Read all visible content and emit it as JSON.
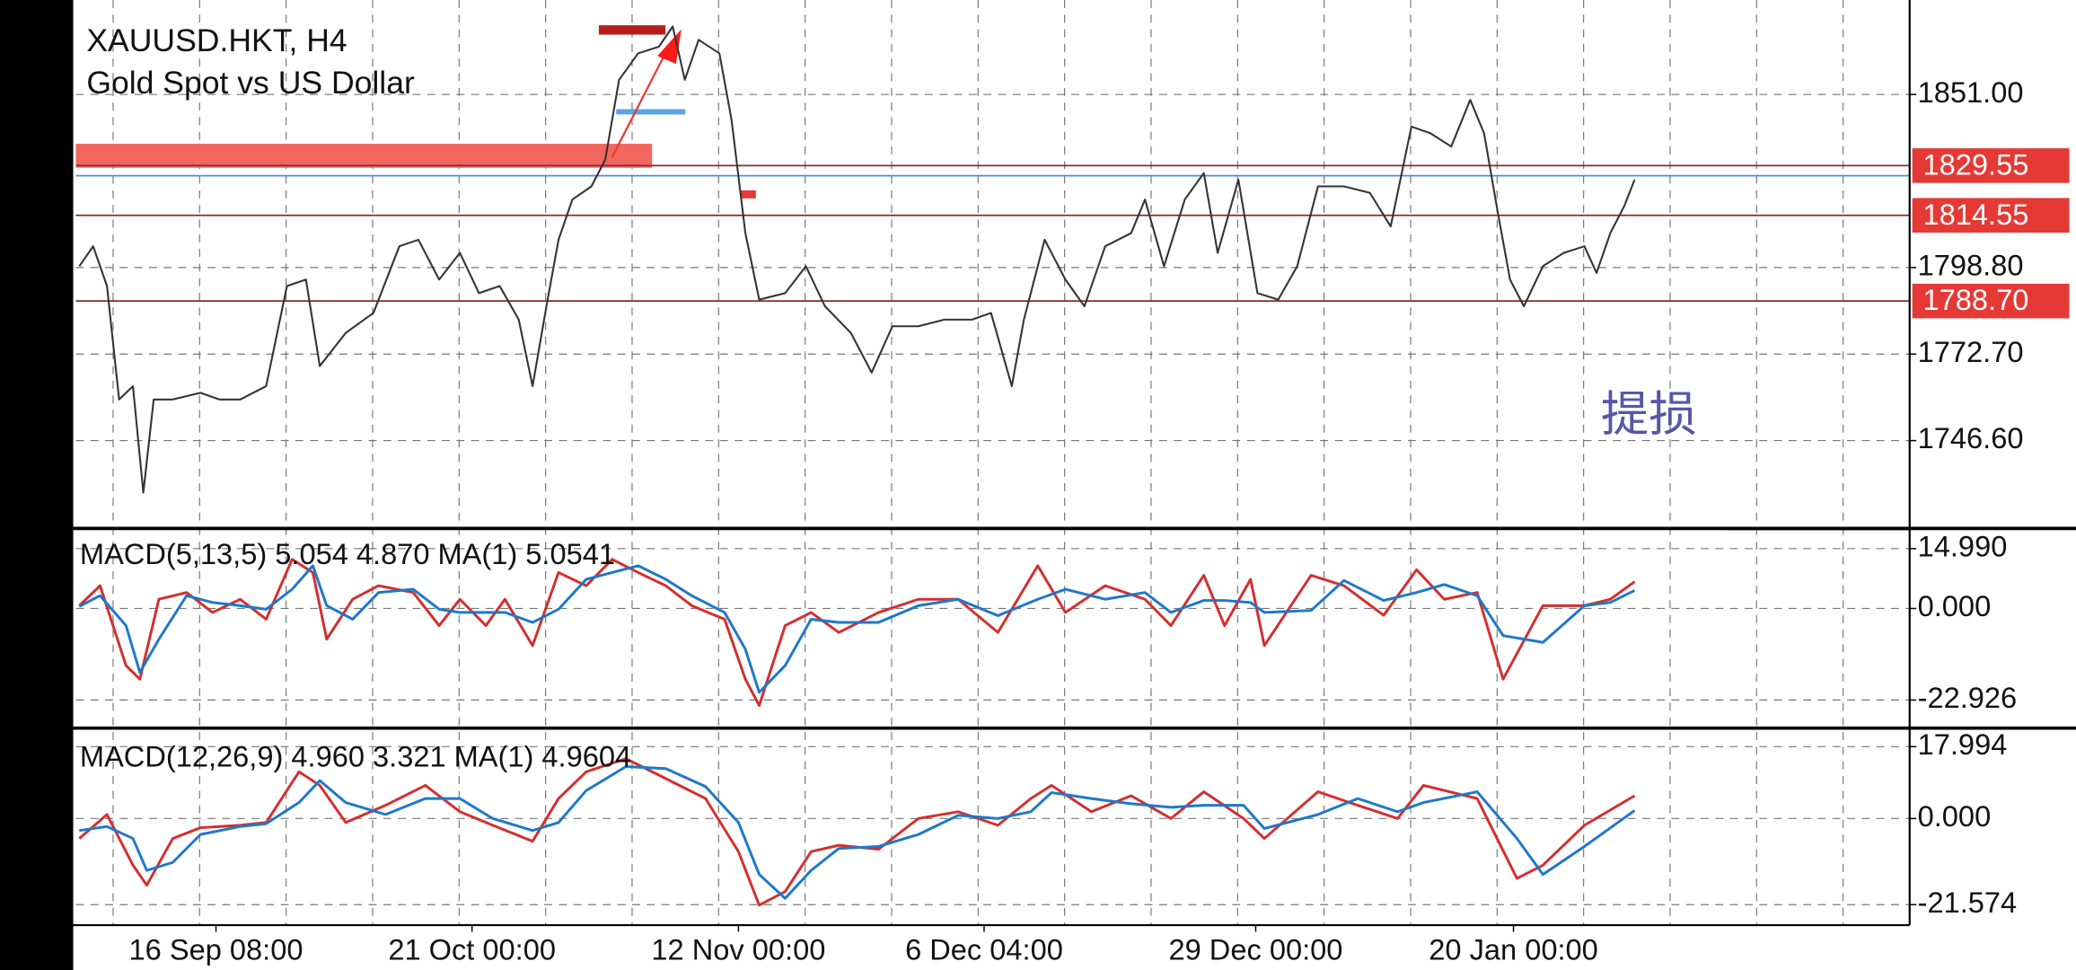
{
  "chart_data": [
    {
      "type": "line",
      "title": "XAUUSD.HKT, H4",
      "subtitle": "Gold Spot vs US Dollar",
      "annotation": "提损",
      "color": "#333333",
      "grid": true,
      "xlim": [
        0,
        1060
      ],
      "ylim": [
        1720.9,
        1879.5
      ],
      "yticks": [
        {
          "value": 1851,
          "label": "1851.00"
        },
        {
          "value": 1798.8,
          "label": "1798.80"
        },
        {
          "value": 1772.7,
          "label": "1772.70"
        },
        {
          "value": 1746.6,
          "label": "1746.60"
        }
      ],
      "levels": [
        {
          "value": 1829.55,
          "label": "1829.55",
          "color": "#e53935"
        },
        {
          "value": 1826.5,
          "color": "#4a90d9"
        },
        {
          "value": 1814.55,
          "label": "1814.55",
          "color": "#e53935"
        },
        {
          "value": 1788.7,
          "label": "1788.70",
          "color": "#e53935"
        }
      ],
      "x": [
        2,
        10,
        18,
        25,
        33,
        39,
        45,
        56,
        72,
        83,
        95,
        110,
        122,
        133,
        141,
        156,
        172,
        187,
        198,
        210,
        222,
        233,
        245,
        256,
        264,
        272,
        279,
        287,
        298,
        306,
        314,
        325,
        337,
        345,
        352,
        360,
        372,
        379,
        387,
        395,
        410,
        422,
        433,
        448,
        460,
        472,
        487,
        502,
        518,
        529,
        541,
        548,
        560,
        572,
        583,
        595,
        610,
        618,
        629,
        641,
        652,
        660,
        672,
        683,
        695,
        706,
        718,
        733,
        748,
        760,
        772,
        783,
        795,
        806,
        814,
        822,
        829,
        837,
        848,
        860,
        872,
        879,
        887,
        895,
        901
      ],
      "values": [
        1799.2,
        1805.2,
        1793.2,
        1759.0,
        1763.0,
        1730.9,
        1759.0,
        1759.0,
        1761.0,
        1759.0,
        1759.0,
        1763.0,
        1793.2,
        1795.2,
        1769.1,
        1779.1,
        1785.1,
        1805.2,
        1807.2,
        1795.2,
        1803.2,
        1791.1,
        1793.2,
        1783.1,
        1763.0,
        1787.1,
        1807.2,
        1819.3,
        1823.3,
        1831.3,
        1855.4,
        1863.4,
        1865.4,
        1871.5,
        1855.4,
        1867.5,
        1863.4,
        1843.4,
        1809.2,
        1789.1,
        1791.1,
        1799.2,
        1787.1,
        1779.1,
        1767.1,
        1781.1,
        1781.1,
        1783.1,
        1783.1,
        1785.1,
        1763.0,
        1783.1,
        1807.2,
        1795.2,
        1787.1,
        1805.2,
        1809.2,
        1819.3,
        1799.2,
        1819.3,
        1827.3,
        1803.2,
        1825.3,
        1791.1,
        1789.1,
        1799.2,
        1823.3,
        1823.3,
        1821.3,
        1811.2,
        1841.3,
        1839.3,
        1835.3,
        1849.4,
        1839.3,
        1815.2,
        1795.2,
        1787.1,
        1799.2,
        1803.2,
        1805.2,
        1797.2,
        1809.2,
        1817.3,
        1825.3
      ]
    },
    {
      "type": "line",
      "title": "MACD(5,13,5) 5.054 4.870 MA(1) 5.0541",
      "xlim": [
        0,
        1060
      ],
      "ylim": [
        -29.3,
        19.7
      ],
      "yticks": [
        {
          "value": 14.99,
          "label": "14.990"
        },
        {
          "value": 0,
          "label": "0.000"
        },
        -22.926
      ],
      "x": [
        2,
        14,
        29,
        37,
        48,
        64,
        79,
        95,
        110,
        125,
        137,
        145,
        160,
        175,
        195,
        210,
        222,
        237,
        248,
        264,
        279,
        295,
        310,
        325,
        341,
        356,
        375,
        387,
        395,
        410,
        425,
        441,
        464,
        487,
        510,
        533,
        556,
        572,
        595,
        618,
        633,
        652,
        664,
        679,
        687,
        714,
        733,
        756,
        775,
        791,
        810,
        825,
        848,
        872,
        887,
        901
      ],
      "series": [
        {
          "color": "#d32f2f",
          "values": [
            0.7,
            5.7,
            -14.3,
            -17.7,
            2.3,
            4,
            -1,
            2.3,
            -2.7,
            12.3,
            9,
            -7.7,
            2.3,
            5.7,
            4,
            -4.3,
            2.3,
            -4.3,
            2.3,
            -9.3,
            9,
            5.7,
            12.3,
            9,
            5.7,
            0.7,
            -2.7,
            -17.7,
            -24.3,
            -4.3,
            -1,
            -6,
            -1,
            2.3,
            2.3,
            -6,
            10.7,
            -1,
            5.7,
            2.3,
            -4.3,
            8.3,
            -4.3,
            7.3,
            -9.3,
            8.3,
            5.7,
            -1.7,
            9.7,
            2.3,
            4,
            -17.7,
            0.7,
            0.7,
            2.3,
            6.7
          ]
        },
        {
          "color": "#1e78c8",
          "values": [
            0.5,
            3.2,
            -4.3,
            -16,
            -7.7,
            3.2,
            1.5,
            0.7,
            -0.2,
            4.8,
            10.7,
            0.7,
            -2.7,
            4,
            4.8,
            -0.2,
            -1,
            -1,
            -1,
            -3.5,
            -0.2,
            7.3,
            9,
            10.7,
            7.3,
            3.2,
            -1,
            -10.2,
            -21,
            -14.3,
            -2.7,
            -3.5,
            -3.5,
            0.7,
            2.3,
            -1.8,
            2.3,
            4.8,
            2.3,
            4,
            -1,
            2,
            2,
            1.5,
            -1,
            -0.5,
            7,
            2,
            4,
            6,
            3.2,
            -6.8,
            -8.5,
            0.7,
            1.5,
            4.5
          ]
        }
      ]
    },
    {
      "type": "line",
      "title": "MACD(12,26,9) 4.960 3.321 MA(1) 4.9604",
      "xlim": [
        0,
        1060
      ],
      "ylim": [
        -26.7,
        22.3
      ],
      "yticks": [
        17.994,
        {
          "value": 0,
          "label": "0.000"
        },
        -21.574
      ],
      "xticks": [
        {
          "value": 81,
          "label": "16 Sep 08:00"
        },
        {
          "value": 229,
          "label": "21 Oct 00:00"
        },
        {
          "value": 383,
          "label": "12 Nov 00:00"
        },
        {
          "value": 525,
          "label": "6 Dec 04:00"
        },
        {
          "value": 682,
          "label": "29 Dec 00:00"
        },
        {
          "value": 831,
          "label": "20 Jan 00:00"
        }
      ],
      "x": [
        2,
        18,
        33,
        41,
        56,
        72,
        95,
        110,
        129,
        141,
        156,
        179,
        202,
        222,
        241,
        264,
        279,
        295,
        318,
        341,
        364,
        383,
        395,
        410,
        425,
        441,
        464,
        487,
        510,
        533,
        552,
        564,
        587,
        610,
        633,
        652,
        675,
        687,
        718,
        741,
        764,
        779,
        810,
        833,
        848,
        872,
        901
      ],
      "series": [
        {
          "color": "#d32f2f",
          "values": [
            -5,
            1,
            -11.7,
            -16.7,
            -5,
            -2.3,
            -1.7,
            -1,
            11.7,
            8.3,
            -1,
            3.3,
            8.3,
            1.7,
            -1.7,
            -5.7,
            5,
            11.7,
            15,
            10,
            5,
            -8.3,
            -21.7,
            -18.3,
            -8.3,
            -6.7,
            -7.7,
            0,
            1.7,
            -1.7,
            5,
            8.3,
            1.7,
            5.7,
            0,
            6.7,
            0,
            -5,
            6.7,
            3.3,
            0,
            8.3,
            5,
            -15,
            -11.7,
            -1.7,
            5.7
          ]
        },
        {
          "color": "#1e78c8",
          "values": [
            -3,
            -2,
            -5,
            -13,
            -11,
            -4,
            -2,
            -1.3,
            4,
            9.5,
            4,
            1,
            5,
            5,
            0,
            -3,
            -1,
            7,
            13,
            12.5,
            8,
            -1,
            -14,
            -20,
            -13,
            -7.5,
            -7,
            -4,
            0.8,
            0,
            1.7,
            6.5,
            5,
            3.7,
            2.8,
            3.3,
            3.3,
            -2.5,
            1,
            5,
            1.7,
            4,
            6.7,
            -5,
            -14,
            -7,
            2
          ]
        }
      ]
    }
  ]
}
